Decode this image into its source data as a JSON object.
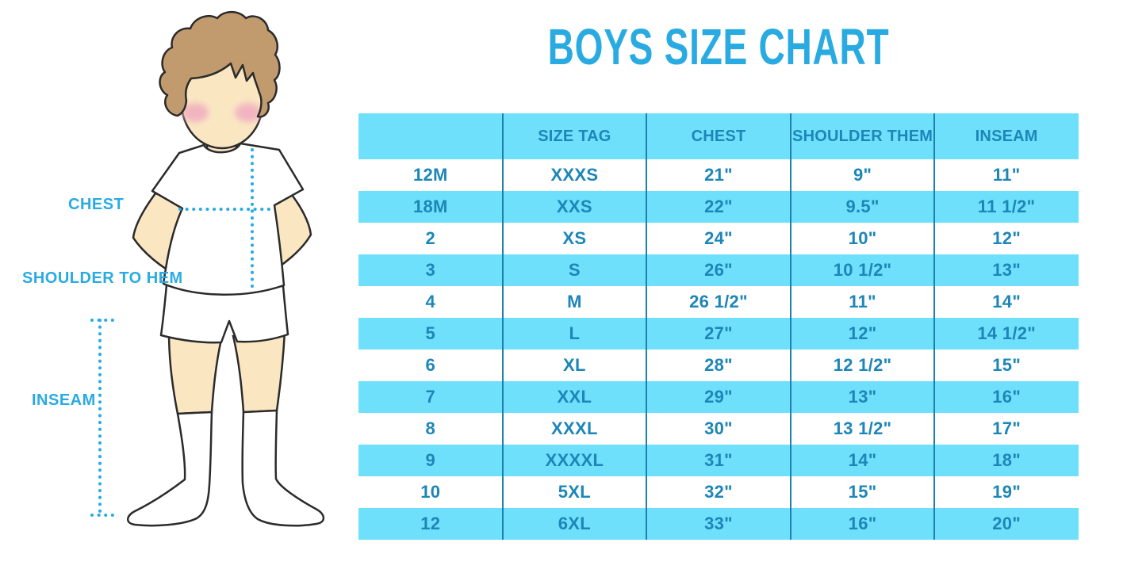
{
  "title": "BOYS SIZE CHART",
  "figure": {
    "labels": {
      "chest": "CHEST",
      "shoulder_to_hem": "SHOULDER TO HEM",
      "inseam": "INSEAM"
    }
  },
  "colors": {
    "accent-azure": "#29abe2",
    "table-cyan": "#6fe0fb",
    "divider-blue": "#1e81ad",
    "cell-text-blue": "#1c86b8",
    "skin": "#fae7c2",
    "hair-brown": "#c19b6e",
    "blush-pink": "#f0abc0",
    "outline-dark": "#2b2b2b"
  },
  "chart_data": {
    "type": "table",
    "title": "BOYS SIZE CHART",
    "columns": [
      "",
      "SIZE TAG",
      "CHEST",
      "SHOULDER THEM",
      "INSEAM"
    ],
    "rows": [
      [
        "12M",
        "XXXS",
        "21\"",
        "9\"",
        "11\""
      ],
      [
        "18M",
        "XXS",
        "22\"",
        "9.5\"",
        "11 1/2\""
      ],
      [
        "2",
        "XS",
        "24\"",
        "10\"",
        "12\""
      ],
      [
        "3",
        "S",
        "26\"",
        "10 1/2\"",
        "13\""
      ],
      [
        "4",
        "M",
        "26 1/2\"",
        "11\"",
        "14\""
      ],
      [
        "5",
        "L",
        "27\"",
        "12\"",
        "14 1/2\""
      ],
      [
        "6",
        "XL",
        "28\"",
        "12 1/2\"",
        "15\""
      ],
      [
        "7",
        "XXL",
        "29\"",
        "13\"",
        "16\""
      ],
      [
        "8",
        "XXXL",
        "30\"",
        "13 1/2\"",
        "17\""
      ],
      [
        "9",
        "XXXXL",
        "31\"",
        "14\"",
        "18\""
      ],
      [
        "10",
        "5XL",
        "32\"",
        "15\"",
        "19\""
      ],
      [
        "12",
        "6XL",
        "33\"",
        "16\"",
        "20\""
      ]
    ]
  }
}
